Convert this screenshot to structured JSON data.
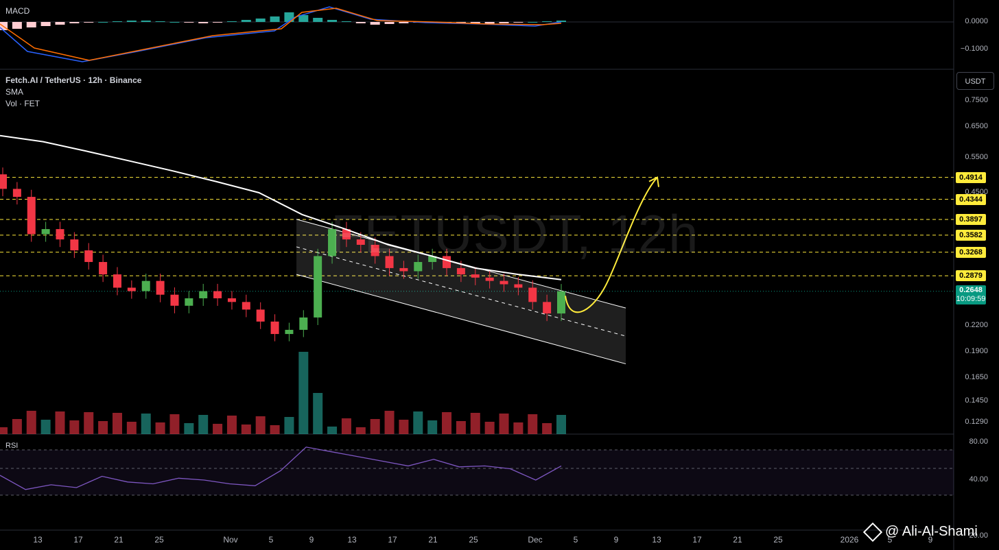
{
  "symbol_title": "Fetch.AI / TetherUS · 12h · Binance",
  "indicator_sma": "SMA",
  "indicator_vol": "Vol · FET",
  "macd_title": "MACD",
  "rsi_title": "RSI",
  "unit_button": "USDT",
  "watermark": "FETUSDT, 12h",
  "credit": "@ Ali-Al-Shami",
  "current_price": "0.2648",
  "countdown": "10:09:59",
  "colors": {
    "up": "#4caf50",
    "down": "#f23645",
    "level": "#ffeb3b",
    "sma": "#ffffff",
    "rsi": "#7e57c2",
    "macd": "#2962ff",
    "signal": "#ff6d00"
  },
  "chart_data": {
    "type": "candlestick",
    "price_axis_ticks": [
      "0.7500",
      "0.6500",
      "0.5500",
      "0.4500",
      "0.2200",
      "0.1900",
      "0.1650",
      "0.1450",
      "0.1290"
    ],
    "price_levels": [
      "0.4914",
      "0.4344",
      "0.3897",
      "0.3582",
      "0.3268",
      "0.2879"
    ],
    "macd_axis_ticks": [
      "0.0000",
      "−0.1000"
    ],
    "rsi_axis_ticks": [
      "80.00",
      "40.00",
      "20.00"
    ],
    "x_tick_labels": [
      "13",
      "17",
      "21",
      "25",
      "Nov",
      "5",
      "9",
      "13",
      "17",
      "21",
      "25",
      "Dec",
      "5",
      "9",
      "13",
      "17",
      "21",
      "25",
      "2026",
      "5",
      "9"
    ],
    "closes": [
      0.46,
      0.44,
      0.36,
      0.37,
      0.35,
      0.33,
      0.31,
      0.29,
      0.27,
      0.265,
      0.28,
      0.26,
      0.245,
      0.255,
      0.265,
      0.255,
      0.25,
      0.24,
      0.225,
      0.21,
      0.215,
      0.23,
      0.32,
      0.37,
      0.35,
      0.34,
      0.32,
      0.3,
      0.295,
      0.31,
      0.32,
      0.3,
      0.29,
      0.285,
      0.28,
      0.275,
      0.27,
      0.25,
      0.235,
      0.2648
    ],
    "sma": [
      0.62,
      0.6,
      0.57,
      0.54,
      0.51,
      0.48,
      0.45,
      0.4,
      0.37,
      0.34,
      0.32,
      0.3,
      0.29,
      0.282
    ],
    "rsi": [
      45,
      30,
      35,
      32,
      44,
      38,
      36,
      42,
      40,
      36,
      34,
      50,
      75,
      70,
      65,
      60,
      55,
      62,
      54,
      55,
      52,
      40,
      55
    ],
    "channel": {
      "upper_start": 0.39,
      "upper_end": 0.242,
      "lower_start": 0.29,
      "lower_end": 0.178
    },
    "projection": {
      "from": 0.24,
      "to": 0.4914
    }
  }
}
